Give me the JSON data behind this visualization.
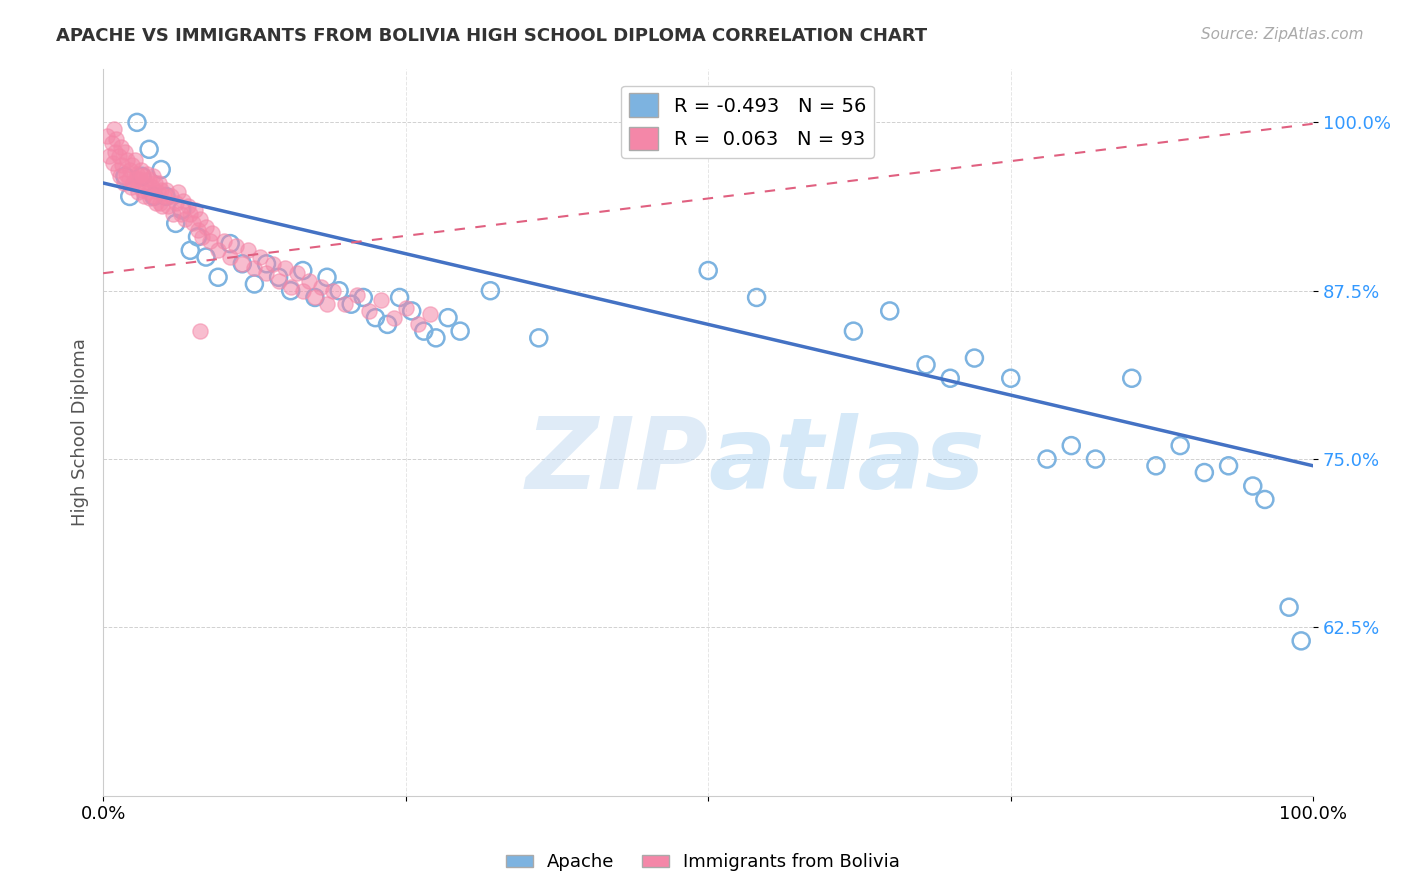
{
  "title": "APACHE VS IMMIGRANTS FROM BOLIVIA HIGH SCHOOL DIPLOMA CORRELATION CHART",
  "source": "Source: ZipAtlas.com",
  "ylabel": "High School Diploma",
  "yticks": [
    0.625,
    0.75,
    0.875,
    1.0
  ],
  "ytick_labels": [
    "62.5%",
    "75.0%",
    "87.5%",
    "100.0%"
  ],
  "xlim": [
    0.0,
    1.0
  ],
  "ylim": [
    0.5,
    1.04
  ],
  "watermark_zip": "ZIP",
  "watermark_atlas": "atlas",
  "legend_blue_r": "-0.493",
  "legend_blue_n": "56",
  "legend_pink_r": "0.063",
  "legend_pink_n": "93",
  "blue_color": "#7db3e0",
  "pink_color": "#f487a8",
  "blue_line_color": "#4472c4",
  "pink_line_color": "#e06080",
  "blue_line_x0": 0.0,
  "blue_line_y0": 0.955,
  "blue_line_x1": 1.0,
  "blue_line_y1": 0.745,
  "pink_line_x0": 0.0,
  "pink_line_y0": 0.888,
  "pink_line_x1": 1.0,
  "pink_line_y1": 0.999,
  "apache_x": [
    0.018,
    0.022,
    0.028,
    0.032,
    0.038,
    0.042,
    0.048,
    0.052,
    0.06,
    0.065,
    0.072,
    0.078,
    0.085,
    0.095,
    0.105,
    0.115,
    0.125,
    0.135,
    0.145,
    0.155,
    0.165,
    0.175,
    0.185,
    0.195,
    0.205,
    0.215,
    0.225,
    0.235,
    0.245,
    0.255,
    0.265,
    0.275,
    0.285,
    0.295,
    0.32,
    0.36,
    0.5,
    0.54,
    0.62,
    0.65,
    0.68,
    0.7,
    0.72,
    0.75,
    0.78,
    0.8,
    0.82,
    0.85,
    0.87,
    0.89,
    0.91,
    0.93,
    0.95,
    0.96,
    0.98,
    0.99
  ],
  "apache_y": [
    0.96,
    0.945,
    1.0,
    0.96,
    0.98,
    0.945,
    0.965,
    0.945,
    0.925,
    0.935,
    0.905,
    0.915,
    0.9,
    0.885,
    0.91,
    0.895,
    0.88,
    0.895,
    0.885,
    0.875,
    0.89,
    0.87,
    0.885,
    0.875,
    0.865,
    0.87,
    0.855,
    0.85,
    0.87,
    0.86,
    0.845,
    0.84,
    0.855,
    0.845,
    0.875,
    0.84,
    0.89,
    0.87,
    0.845,
    0.86,
    0.82,
    0.81,
    0.825,
    0.81,
    0.75,
    0.76,
    0.75,
    0.81,
    0.745,
    0.76,
    0.74,
    0.745,
    0.73,
    0.72,
    0.64,
    0.615
  ],
  "bolivia_x": [
    0.003,
    0.005,
    0.007,
    0.008,
    0.009,
    0.01,
    0.011,
    0.012,
    0.013,
    0.014,
    0.015,
    0.016,
    0.017,
    0.018,
    0.019,
    0.02,
    0.021,
    0.022,
    0.023,
    0.024,
    0.025,
    0.026,
    0.027,
    0.028,
    0.029,
    0.03,
    0.031,
    0.032,
    0.033,
    0.034,
    0.035,
    0.036,
    0.037,
    0.038,
    0.039,
    0.04,
    0.041,
    0.042,
    0.043,
    0.044,
    0.045,
    0.046,
    0.047,
    0.048,
    0.049,
    0.05,
    0.052,
    0.054,
    0.056,
    0.058,
    0.06,
    0.062,
    0.064,
    0.066,
    0.068,
    0.07,
    0.072,
    0.074,
    0.076,
    0.078,
    0.08,
    0.082,
    0.085,
    0.088,
    0.09,
    0.095,
    0.1,
    0.105,
    0.11,
    0.115,
    0.12,
    0.125,
    0.13,
    0.135,
    0.14,
    0.145,
    0.15,
    0.155,
    0.16,
    0.165,
    0.17,
    0.175,
    0.18,
    0.185,
    0.19,
    0.2,
    0.21,
    0.22,
    0.23,
    0.24,
    0.25,
    0.26,
    0.27,
    0.08
  ],
  "bolivia_y": [
    0.99,
    0.975,
    0.985,
    0.97,
    0.995,
    0.978,
    0.988,
    0.965,
    0.975,
    0.96,
    0.982,
    0.968,
    0.955,
    0.978,
    0.962,
    0.972,
    0.958,
    0.965,
    0.952,
    0.968,
    0.955,
    0.972,
    0.958,
    0.962,
    0.948,
    0.958,
    0.965,
    0.95,
    0.96,
    0.945,
    0.955,
    0.962,
    0.948,
    0.958,
    0.944,
    0.952,
    0.96,
    0.945,
    0.955,
    0.94,
    0.948,
    0.955,
    0.94,
    0.95,
    0.938,
    0.945,
    0.95,
    0.938,
    0.945,
    0.932,
    0.94,
    0.948,
    0.932,
    0.942,
    0.928,
    0.938,
    0.932,
    0.925,
    0.935,
    0.92,
    0.928,
    0.915,
    0.922,
    0.912,
    0.918,
    0.905,
    0.912,
    0.9,
    0.908,
    0.895,
    0.905,
    0.892,
    0.9,
    0.888,
    0.895,
    0.882,
    0.892,
    0.878,
    0.888,
    0.875,
    0.882,
    0.87,
    0.878,
    0.865,
    0.875,
    0.865,
    0.872,
    0.86,
    0.868,
    0.855,
    0.862,
    0.85,
    0.858,
    0.845
  ]
}
